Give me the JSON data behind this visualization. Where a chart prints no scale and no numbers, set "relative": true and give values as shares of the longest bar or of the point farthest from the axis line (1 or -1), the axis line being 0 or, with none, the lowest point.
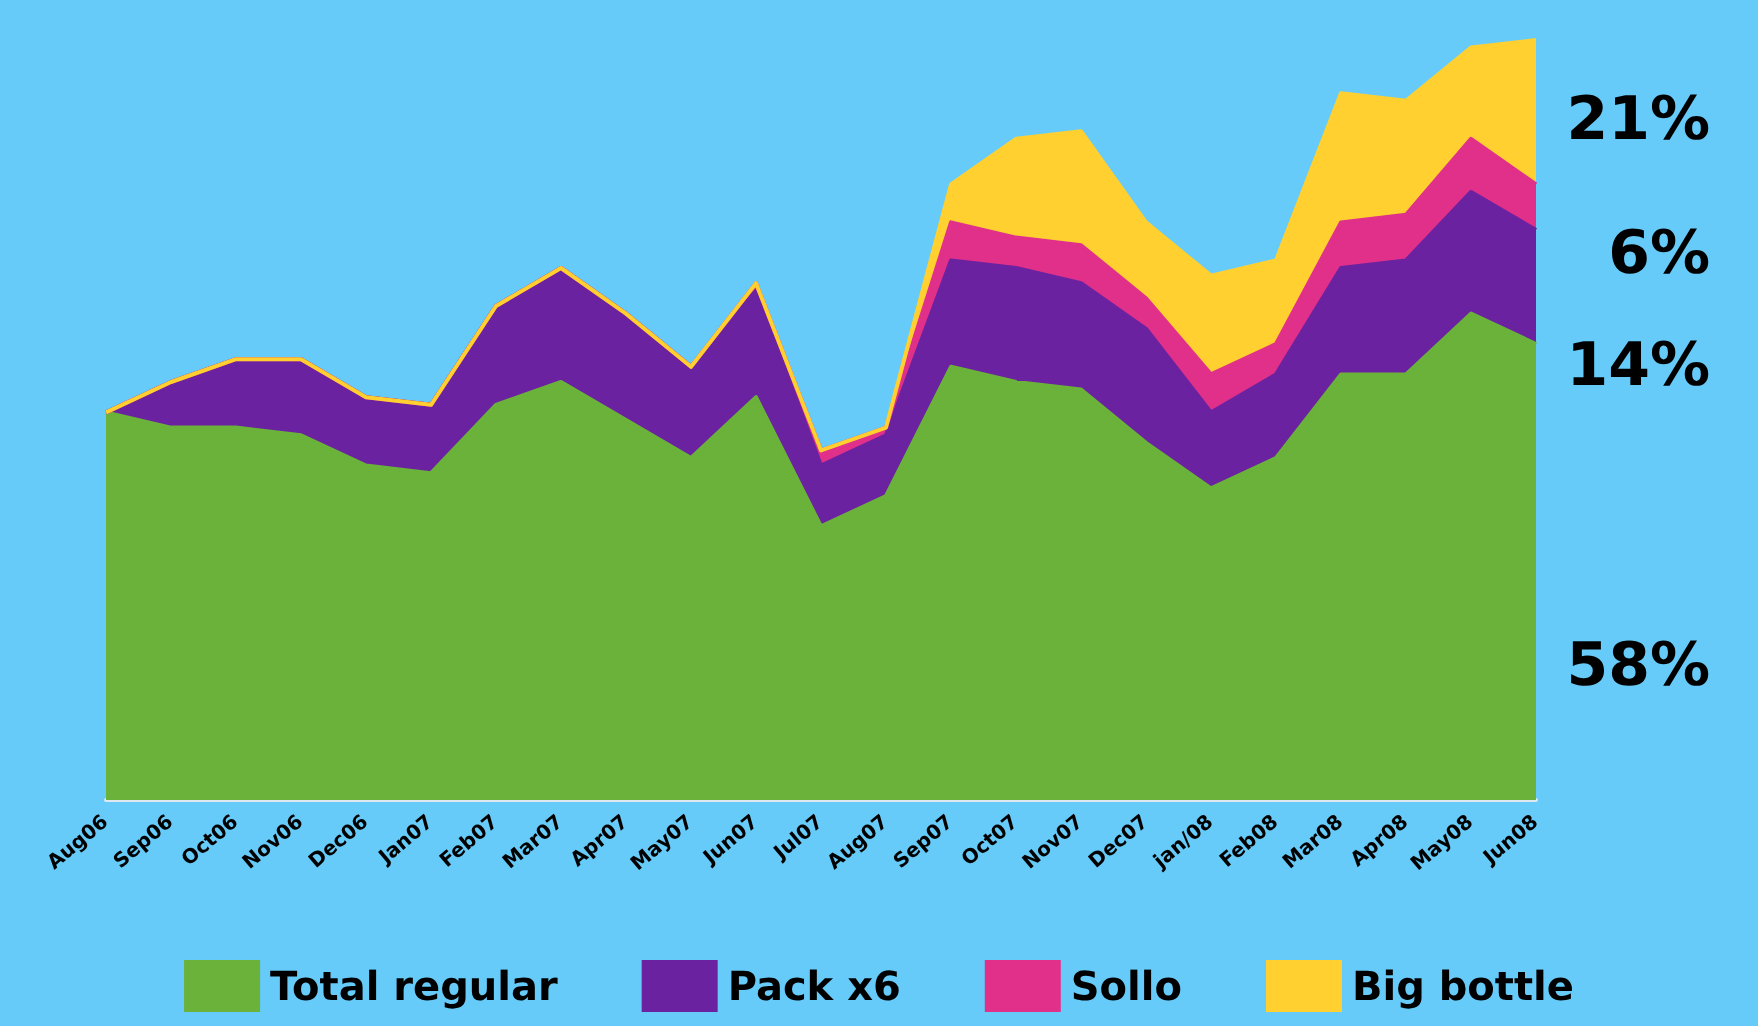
{
  "chart_data": {
    "type": "area",
    "stacked": true,
    "relative": true,
    "grid": false,
    "marker": "none",
    "legend": "bottom",
    "categories": [
      "Aug06",
      "Sep06",
      "Oct06",
      "Nov06",
      "Dec06",
      "Jan07",
      "Feb07",
      "Mar07",
      "Apr07",
      "May07",
      "Jun07",
      "Jul07",
      "Aug07",
      "Sep07",
      "Oct07",
      "Nov07",
      "Dec07",
      "jan/08",
      "Feb08",
      "Mar08",
      "Apr08",
      "May08",
      "Jun08"
    ],
    "series": [
      {
        "name": "Total regular",
        "color": "#6ab23a",
        "values": [
          0.51,
          0.49,
          0.49,
          0.48,
          0.44,
          0.43,
          0.52,
          0.55,
          0.5,
          0.45,
          0.53,
          0.36,
          0.4,
          0.57,
          0.55,
          0.54,
          0.47,
          0.41,
          0.45,
          0.56,
          0.56,
          0.64,
          0.6
        ]
      },
      {
        "name": "Pack x6",
        "color": "#6a22a0",
        "values": [
          0,
          0.06,
          0.09,
          0.1,
          0.09,
          0.09,
          0.13,
          0.15,
          0.14,
          0.12,
          0.14,
          0.08,
          0.08,
          0.14,
          0.15,
          0.14,
          0.15,
          0.1,
          0.11,
          0.14,
          0.15,
          0.16,
          0.15
        ]
      },
      {
        "name": "Sollo",
        "color": "#e0308a",
        "values": [
          0,
          0,
          0,
          0,
          0,
          0,
          0,
          0,
          0,
          0,
          0.01,
          0.02,
          0.01,
          0.05,
          0.04,
          0.05,
          0.04,
          0.05,
          0.04,
          0.06,
          0.06,
          0.07,
          0.06
        ]
      },
      {
        "name": "Big bottle",
        "color": "#ffd030",
        "values": [
          0,
          0,
          0,
          0,
          0,
          0,
          0,
          0,
          0,
          0,
          0,
          0,
          0,
          0.05,
          0.13,
          0.15,
          0.1,
          0.13,
          0.11,
          0.17,
          0.15,
          0.12,
          0.19
        ]
      }
    ],
    "annotations": [
      "21%",
      "6%",
      "14%",
      "58%"
    ]
  }
}
